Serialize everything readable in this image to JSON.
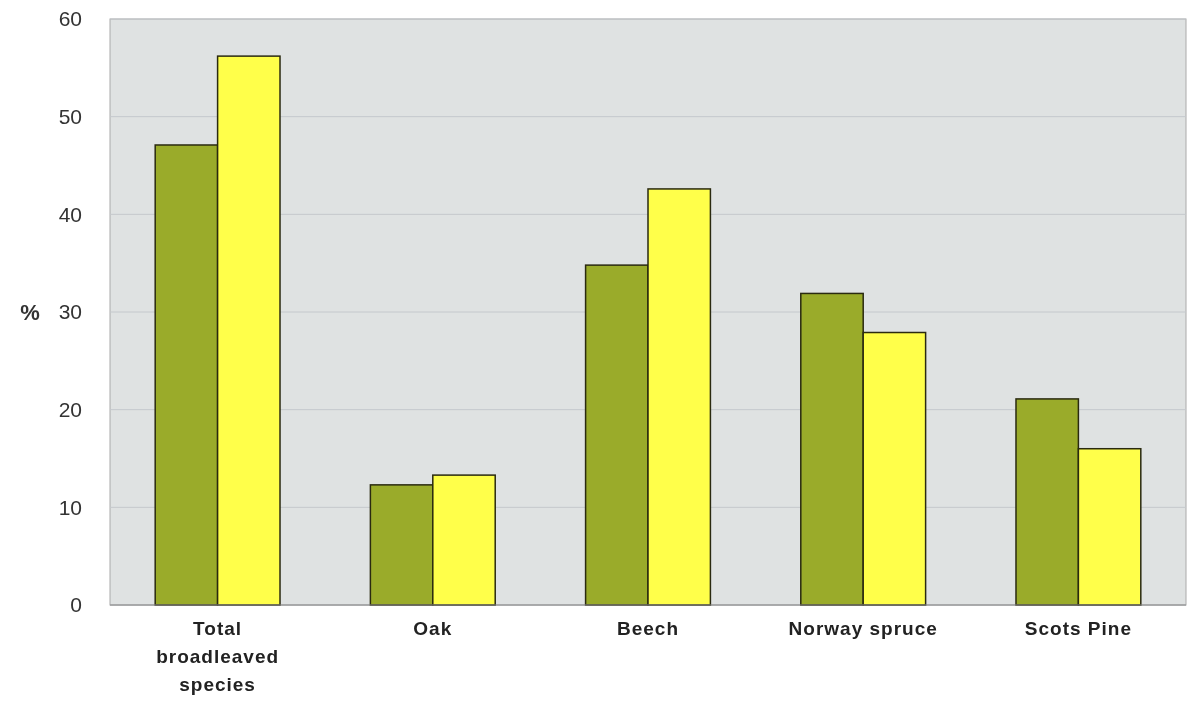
{
  "chart_data": {
    "type": "bar",
    "ylabel": "%",
    "categories": [
      "Total broadleaved species",
      "Oak",
      "Beech",
      "Norway spruce",
      "Scots Pine"
    ],
    "series": [
      {
        "color": "#9aab2a",
        "values": [
          47.1,
          12.3,
          34.8,
          31.9,
          21.1
        ]
      },
      {
        "color": "#ffff4a",
        "values": [
          56.2,
          13.3,
          42.6,
          27.9,
          16.0
        ]
      }
    ],
    "ylim": [
      0,
      60
    ],
    "yticks": [
      0,
      10,
      20,
      30,
      40,
      50,
      60
    ],
    "grid": "y"
  }
}
